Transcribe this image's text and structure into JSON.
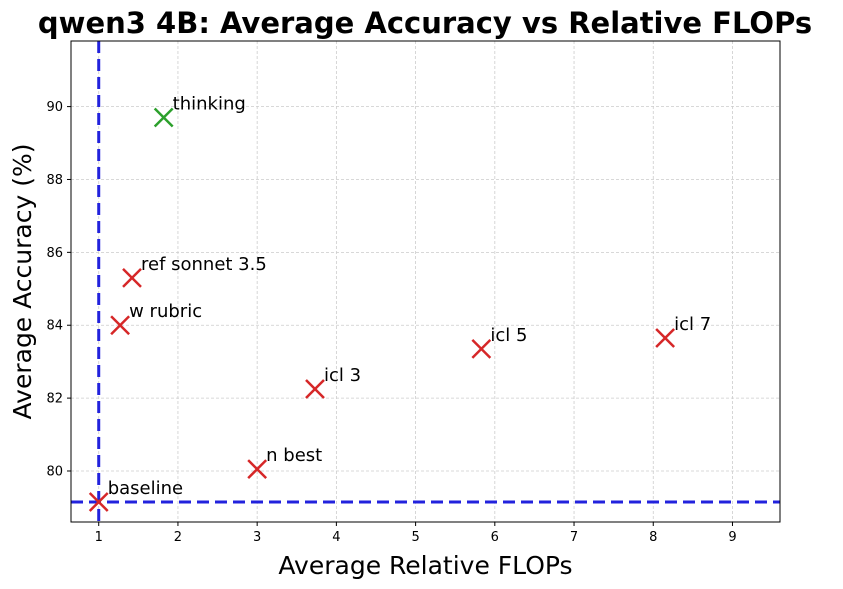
{
  "chart_data": {
    "type": "scatter",
    "title": "qwen3 4B: Average Accuracy vs Relative FLOPs",
    "xlabel": "Average Relative FLOPs",
    "ylabel": "Average Accuracy (%)",
    "xlim": [
      0.65,
      9.6
    ],
    "ylim": [
      78.6,
      91.8
    ],
    "xticks": [
      1,
      2,
      3,
      4,
      5,
      6,
      7,
      8,
      9
    ],
    "yticks": [
      80,
      82,
      84,
      86,
      88,
      90
    ],
    "grid": true,
    "reference_lines": {
      "vertical_x": 1,
      "horizontal_y": 79.15,
      "color": "#2222dd"
    },
    "points": [
      {
        "label": "baseline",
        "x": 1.0,
        "y": 79.15,
        "color": "#d62728"
      },
      {
        "label": "thinking",
        "x": 1.82,
        "y": 89.7,
        "color": "#2ca02c"
      },
      {
        "label": "ref sonnet 3.5",
        "x": 1.42,
        "y": 85.3,
        "color": "#d62728"
      },
      {
        "label": "w rubric",
        "x": 1.27,
        "y": 84.0,
        "color": "#d62728"
      },
      {
        "label": "icl 3",
        "x": 3.73,
        "y": 82.25,
        "color": "#d62728"
      },
      {
        "label": "n best",
        "x": 3.0,
        "y": 80.05,
        "color": "#d62728"
      },
      {
        "label": "icl 5",
        "x": 5.83,
        "y": 83.35,
        "color": "#d62728"
      },
      {
        "label": "icl 7",
        "x": 8.15,
        "y": 83.65,
        "color": "#d62728"
      }
    ]
  }
}
